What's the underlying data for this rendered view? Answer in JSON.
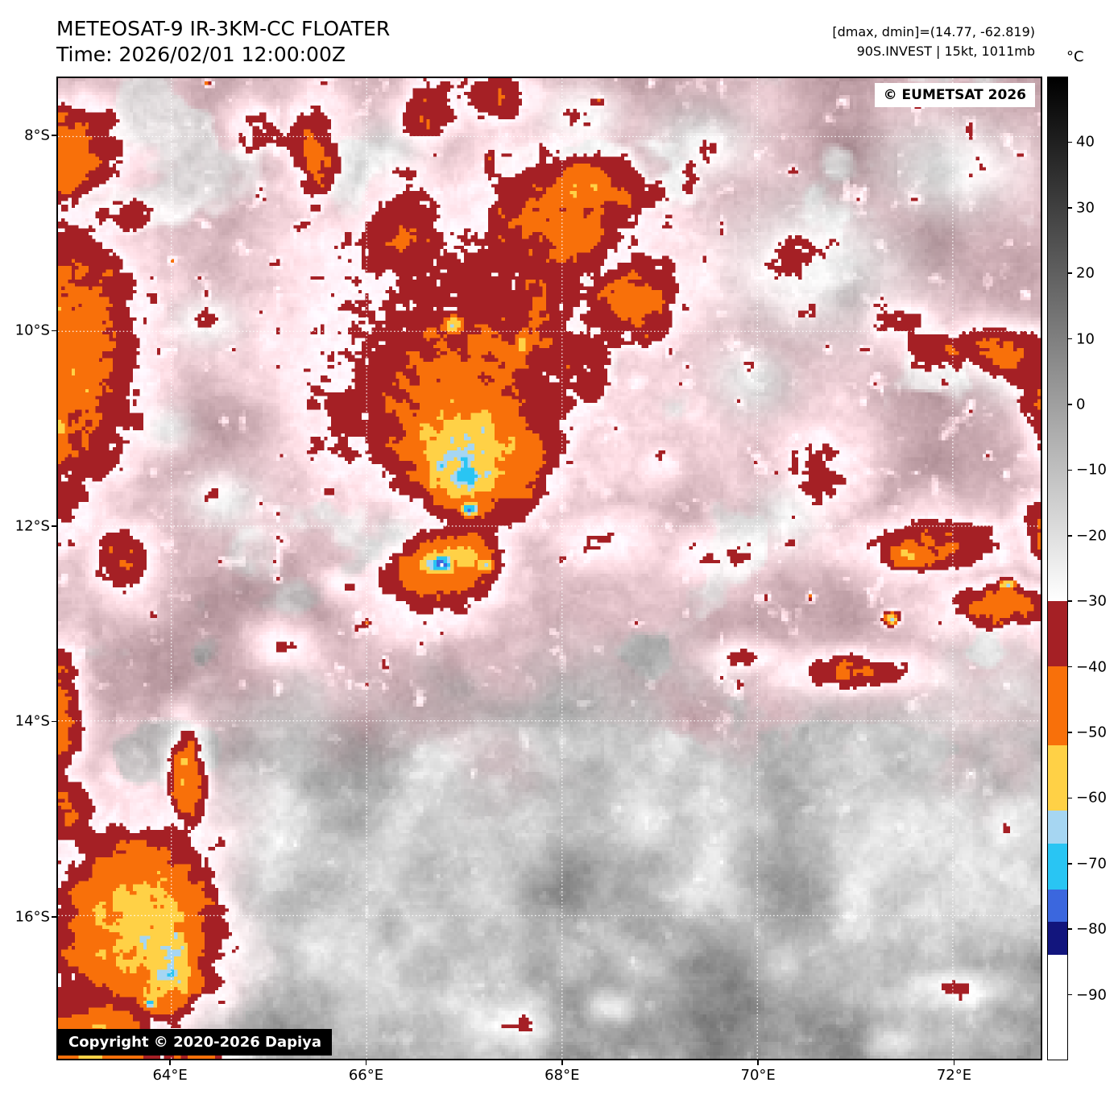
{
  "header": {
    "title": "METEOSAT-9 IR-3KM-CC FLOATER",
    "time": "Time: 2026/02/01 12:00:00Z",
    "dmax_dmin": "[dmax, dmin]=(14.77, -62.819)",
    "storm_info": "90S.INVEST | 15kt, 1011mb"
  },
  "map": {
    "eumetsat_credit": "© EUMETSAT 2026",
    "copyright": "Copyright © 2020-2026 Dapiya",
    "extent": {
      "lon_min": 62.84,
      "lon_max": 72.9,
      "lat_min": -17.47,
      "lat_max": -7.4
    },
    "lon_ticks": [
      {
        "value": 64,
        "label": "64°E"
      },
      {
        "value": 66,
        "label": "66°E"
      },
      {
        "value": 68,
        "label": "68°E"
      },
      {
        "value": 70,
        "label": "70°E"
      },
      {
        "value": 72,
        "label": "72°E"
      }
    ],
    "lat_ticks": [
      {
        "value": -8,
        "label": "8°S"
      },
      {
        "value": -10,
        "label": "10°S"
      },
      {
        "value": -12,
        "label": "12°S"
      },
      {
        "value": -14,
        "label": "14°S"
      },
      {
        "value": -16,
        "label": "16°S"
      }
    ],
    "gridline_color": "#ffffff"
  },
  "colorbar": {
    "unit_label": "°C",
    "domain": [
      50,
      -100
    ],
    "gradient": {
      "from": 50,
      "to": -30,
      "colors": [
        "#000000",
        "#ffffff"
      ]
    },
    "segments": [
      {
        "from": -30,
        "to": -40,
        "color": "#a52025"
      },
      {
        "from": -40,
        "to": -52,
        "color": "#f8700a"
      },
      {
        "from": -52,
        "to": -62,
        "color": "#ffd146"
      },
      {
        "from": -62,
        "to": -67,
        "color": "#a6d6f2"
      },
      {
        "from": -67,
        "to": -74,
        "color": "#29c5f3"
      },
      {
        "from": -74,
        "to": -79,
        "color": "#3b67de"
      },
      {
        "from": -79,
        "to": -84,
        "color": "#12157d"
      },
      {
        "from": -84,
        "to": -100,
        "color": "#ffffff"
      }
    ],
    "ticks": [
      {
        "value": 40,
        "label": "40"
      },
      {
        "value": 30,
        "label": "30"
      },
      {
        "value": 20,
        "label": "20"
      },
      {
        "value": 10,
        "label": "10"
      },
      {
        "value": 0,
        "label": "0"
      },
      {
        "value": -10,
        "label": "−10"
      },
      {
        "value": -20,
        "label": "−20"
      },
      {
        "value": -30,
        "label": "−30"
      },
      {
        "value": -40,
        "label": "−40"
      },
      {
        "value": -50,
        "label": "−50"
      },
      {
        "value": -60,
        "label": "−60"
      },
      {
        "value": -70,
        "label": "−70"
      },
      {
        "value": -80,
        "label": "−80"
      },
      {
        "value": -90,
        "label": "−90"
      }
    ]
  },
  "imagery": {
    "base_temp": -5,
    "pink_tint": {
      "r": 30,
      "g": -2,
      "b": 5
    },
    "cold_features": [
      [
        67.05,
        -11.82,
        0.17,
        0.13,
        76
      ],
      [
        67.0,
        -11.5,
        0.42,
        0.38,
        72
      ],
      [
        66.98,
        -11.4,
        0.78,
        0.7,
        65
      ],
      [
        67.05,
        -11.15,
        1.25,
        1.15,
        57
      ],
      [
        67.0,
        -10.7,
        1.85,
        1.75,
        44
      ],
      [
        67.15,
        -10.25,
        2.4,
        2.3,
        34
      ],
      [
        68.0,
        -8.85,
        1.35,
        0.95,
        40
      ],
      [
        68.75,
        -9.7,
        0.85,
        0.75,
        42
      ],
      [
        68.2,
        -8.55,
        0.55,
        0.45,
        52
      ],
      [
        66.4,
        -9.0,
        0.65,
        0.95,
        36
      ],
      [
        65.45,
        -8.15,
        0.5,
        0.75,
        38
      ],
      [
        64.85,
        -7.85,
        0.4,
        0.35,
        33
      ],
      [
        66.6,
        -7.75,
        0.45,
        0.5,
        36
      ],
      [
        67.35,
        -7.6,
        0.55,
        0.35,
        33
      ],
      [
        66.88,
        -9.93,
        0.2,
        0.16,
        61
      ],
      [
        67.6,
        -10.15,
        0.16,
        0.28,
        60
      ],
      [
        66.78,
        -12.4,
        0.09,
        0.07,
        92
      ],
      [
        66.78,
        -12.4,
        0.28,
        0.22,
        80
      ],
      [
        66.75,
        -12.38,
        0.44,
        0.36,
        66
      ],
      [
        66.92,
        -12.33,
        0.56,
        0.42,
        58
      ],
      [
        66.78,
        -12.4,
        0.82,
        0.62,
        52
      ],
      [
        66.82,
        -12.44,
        1.05,
        0.85,
        40
      ],
      [
        67.18,
        -12.4,
        0.2,
        0.15,
        58
      ],
      [
        62.95,
        -10.3,
        1.0,
        2.3,
        46
      ],
      [
        62.75,
        -11.0,
        0.45,
        0.9,
        55
      ],
      [
        62.9,
        -8.2,
        0.85,
        0.7,
        44
      ],
      [
        63.5,
        -12.3,
        0.5,
        0.6,
        38
      ],
      [
        62.85,
        -13.95,
        0.4,
        1.1,
        42
      ],
      [
        64.15,
        -14.55,
        0.28,
        0.8,
        50
      ],
      [
        64.14,
        -14.42,
        0.1,
        0.1,
        62
      ],
      [
        62.9,
        -14.9,
        0.5,
        0.6,
        40
      ],
      [
        63.7,
        -16.05,
        1.2,
        1.45,
        56
      ],
      [
        63.95,
        -16.5,
        0.55,
        0.8,
        63
      ],
      [
        63.8,
        -16.9,
        0.12,
        0.1,
        68
      ],
      [
        64.05,
        -16.2,
        0.1,
        0.1,
        67
      ],
      [
        63.2,
        -17.3,
        1.0,
        0.8,
        50
      ],
      [
        64.3,
        -17.5,
        0.6,
        0.4,
        44
      ],
      [
        71.75,
        -12.2,
        1.25,
        0.45,
        42
      ],
      [
        71.6,
        -12.3,
        0.5,
        0.25,
        53
      ],
      [
        72.5,
        -12.8,
        0.85,
        0.4,
        46
      ],
      [
        72.55,
        -12.75,
        0.4,
        0.2,
        54
      ],
      [
        71.37,
        -12.95,
        0.12,
        0.1,
        64
      ],
      [
        72.55,
        -12.6,
        0.15,
        0.1,
        63
      ],
      [
        73.0,
        -12.1,
        0.45,
        0.6,
        42
      ],
      [
        70.75,
        -11.45,
        0.6,
        0.75,
        32
      ],
      [
        72.3,
        -10.15,
        0.9,
        0.3,
        32
      ],
      [
        72.95,
        -10.9,
        0.35,
        0.8,
        35
      ],
      [
        71.5,
        -9.9,
        0.5,
        0.25,
        28
      ],
      [
        70.95,
        -13.5,
        0.85,
        0.3,
        40
      ],
      [
        69.9,
        -13.35,
        0.5,
        0.22,
        28
      ],
      [
        69.55,
        -12.3,
        0.7,
        0.4,
        27
      ],
      [
        68.45,
        -12.1,
        0.85,
        0.45,
        28
      ],
      [
        69.0,
        -11.35,
        0.4,
        0.35,
        24
      ],
      [
        65.15,
        -13.2,
        0.5,
        0.35,
        28
      ],
      [
        65.75,
        -12.6,
        0.35,
        0.28,
        26
      ],
      [
        67.5,
        -17.15,
        0.55,
        0.3,
        27
      ],
      [
        68.5,
        -16.95,
        0.3,
        0.18,
        24
      ],
      [
        72.1,
        -16.75,
        0.6,
        0.2,
        22
      ],
      [
        71.3,
        -17.3,
        0.35,
        0.18,
        20
      ]
    ],
    "gray_patches": [
      [
        70.6,
        -9.35,
        1.15,
        0.85
      ],
      [
        71.95,
        -8.35,
        0.9,
        0.6
      ],
      [
        69.4,
        -8.05,
        0.65,
        0.5
      ],
      [
        72.6,
        -10.35,
        0.55,
        0.45
      ],
      [
        68.2,
        -7.8,
        0.5,
        0.35
      ],
      [
        69.95,
        -10.5,
        0.5,
        0.45
      ],
      [
        70.3,
        -11.9,
        0.45,
        0.4
      ],
      [
        64.35,
        -9.9,
        0.4,
        0.3
      ],
      [
        66.2,
        -8.15,
        0.45,
        0.35
      ],
      [
        64.55,
        -11.75,
        0.45,
        0.35
      ],
      [
        66.3,
        -12.1,
        0.3,
        0.25
      ],
      [
        63.95,
        -11.0,
        0.3,
        0.25
      ]
    ]
  }
}
